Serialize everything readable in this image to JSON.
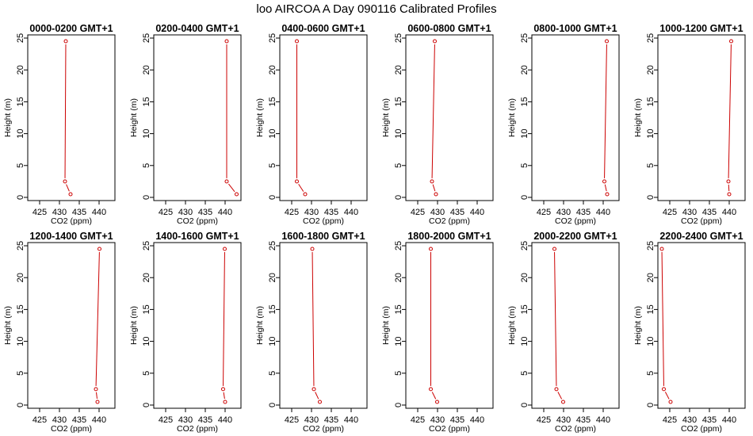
{
  "title": "loo AIRCOA A  Day 090116  Calibrated Profiles",
  "chart_data": {
    "type": "line",
    "title": "loo AIRCOA A  Day 090116  Calibrated Profiles",
    "xlabel": "CO2 (ppm)",
    "ylabel": "Height (m)",
    "xlim": [
      422,
      444
    ],
    "ylim": [
      -0.5,
      25.5
    ],
    "xticks": [
      425,
      430,
      435,
      440
    ],
    "yticks": [
      0,
      5,
      10,
      15,
      20,
      25
    ],
    "grid": false,
    "line_color": "#cc0000",
    "panels": [
      {
        "title": "0000-0200 GMT+1",
        "x": [
          432.8,
          431.4,
          431.6
        ],
        "y": [
          0.5,
          2.5,
          24.5
        ]
      },
      {
        "title": "0200-0400 GMT+1",
        "x": [
          442.9,
          440.4,
          440.4
        ],
        "y": [
          0.5,
          2.5,
          24.5
        ]
      },
      {
        "title": "0400-0600 GMT+1",
        "x": [
          428.4,
          426.3,
          426.3
        ],
        "y": [
          0.5,
          2.5,
          24.5
        ]
      },
      {
        "title": "0600-0800 GMT+1",
        "x": [
          429.6,
          428.6,
          429.3
        ],
        "y": [
          0.5,
          2.5,
          24.5
        ]
      },
      {
        "title": "0800-1000 GMT+1",
        "x": [
          441.0,
          440.3,
          440.9
        ],
        "y": [
          0.5,
          2.5,
          24.5
        ]
      },
      {
        "title": "1000-1200 GMT+1",
        "x": [
          440.0,
          439.8,
          440.5
        ],
        "y": [
          0.5,
          2.5,
          24.5
        ]
      },
      {
        "title": "1200-1400 GMT+1",
        "x": [
          439.6,
          439.2,
          440.1
        ],
        "y": [
          0.5,
          2.5,
          24.5
        ]
      },
      {
        "title": "1400-1600 GMT+1",
        "x": [
          440.0,
          439.5,
          439.9
        ],
        "y": [
          0.5,
          2.5,
          24.5
        ]
      },
      {
        "title": "1600-1800 GMT+1",
        "x": [
          432.1,
          430.6,
          430.2
        ],
        "y": [
          0.5,
          2.5,
          24.5
        ]
      },
      {
        "title": "1800-2000 GMT+1",
        "x": [
          429.9,
          428.3,
          428.3
        ],
        "y": [
          0.5,
          2.5,
          24.5
        ]
      },
      {
        "title": "2000-2200 GMT+1",
        "x": [
          429.9,
          428.2,
          427.7
        ],
        "y": [
          0.5,
          2.5,
          24.5
        ]
      },
      {
        "title": "2200-2400 GMT+1",
        "x": [
          425.2,
          423.5,
          423.0
        ],
        "y": [
          0.5,
          2.5,
          24.5
        ]
      }
    ]
  }
}
